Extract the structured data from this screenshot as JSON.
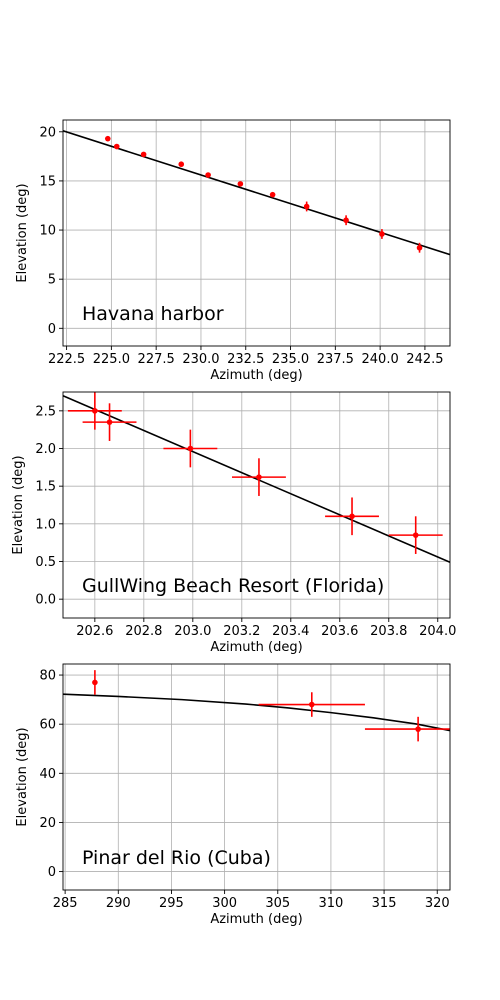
{
  "chart_data": [
    {
      "type": "scatter",
      "annotation": "Havana harbor",
      "xlabel": "Azimuth (deg)",
      "ylabel": "Elevation (deg)",
      "xlim": [
        222.3,
        243.9
      ],
      "ylim": [
        -1.8,
        21.2
      ],
      "xticks": [
        222.5,
        225.0,
        227.5,
        230.0,
        232.5,
        235.0,
        237.5,
        240.0,
        242.5
      ],
      "xtick_labels": [
        "222.5",
        "225.0",
        "227.5",
        "230.0",
        "232.5",
        "235.0",
        "237.5",
        "240.0",
        "242.5"
      ],
      "yticks": [
        0,
        5,
        10,
        15,
        20
      ],
      "ytick_labels": [
        "0",
        "5",
        "10",
        "15",
        "20"
      ],
      "grid": true,
      "colors": {
        "points": "#ff0000",
        "line": "#000000",
        "grid": "#b0b0b0"
      },
      "points": [
        {
          "x": 224.8,
          "y": 19.3,
          "xerr": 0.1,
          "yerr": 0.2
        },
        {
          "x": 225.3,
          "y": 18.5,
          "xerr": 0.1,
          "yerr": 0.2
        },
        {
          "x": 226.8,
          "y": 17.7,
          "xerr": 0.1,
          "yerr": 0.2
        },
        {
          "x": 228.9,
          "y": 16.7,
          "xerr": 0.1,
          "yerr": 0.2
        },
        {
          "x": 230.4,
          "y": 15.6,
          "xerr": 0.1,
          "yerr": 0.2
        },
        {
          "x": 232.2,
          "y": 14.7,
          "xerr": 0.1,
          "yerr": 0.2
        },
        {
          "x": 234.0,
          "y": 13.6,
          "xerr": 0.1,
          "yerr": 0.2
        },
        {
          "x": 235.9,
          "y": 12.4,
          "xerr": 0.1,
          "yerr": 0.5
        },
        {
          "x": 238.1,
          "y": 11.0,
          "xerr": 0.1,
          "yerr": 0.5
        },
        {
          "x": 240.1,
          "y": 9.6,
          "xerr": 0.1,
          "yerr": 0.5
        },
        {
          "x": 242.2,
          "y": 8.2,
          "xerr": 0.1,
          "yerr": 0.5
        }
      ],
      "line": {
        "x": [
          222.3,
          243.9
        ],
        "y": [
          20.1,
          7.5
        ]
      }
    },
    {
      "type": "scatter",
      "annotation": "GullWing Beach Resort (Florida)",
      "xlabel": "Azimuth (deg)",
      "ylabel": "Elevation (deg)",
      "xlim": [
        202.47,
        204.05
      ],
      "ylim": [
        -0.25,
        2.75
      ],
      "xticks": [
        202.6,
        202.8,
        203.0,
        203.2,
        203.4,
        203.6,
        203.8,
        204.0
      ],
      "xtick_labels": [
        "202.6",
        "202.8",
        "203.0",
        "203.2",
        "203.4",
        "203.6",
        "203.8",
        "204.0"
      ],
      "yticks": [
        0.0,
        0.5,
        1.0,
        1.5,
        2.0,
        2.5
      ],
      "ytick_labels": [
        "0.0",
        "0.5",
        "1.0",
        "1.5",
        "2.0",
        "2.5"
      ],
      "grid": true,
      "colors": {
        "points": "#ff0000",
        "line": "#000000",
        "grid": "#b0b0b0"
      },
      "points": [
        {
          "x": 202.6,
          "y": 2.5,
          "xerr": 0.11,
          "yerr": 0.25
        },
        {
          "x": 202.66,
          "y": 2.35,
          "xerr": 0.11,
          "yerr": 0.25
        },
        {
          "x": 202.99,
          "y": 2.0,
          "xerr": 0.11,
          "yerr": 0.25
        },
        {
          "x": 203.27,
          "y": 1.62,
          "xerr": 0.11,
          "yerr": 0.25
        },
        {
          "x": 203.65,
          "y": 1.1,
          "xerr": 0.11,
          "yerr": 0.25
        },
        {
          "x": 203.91,
          "y": 0.85,
          "xerr": 0.11,
          "yerr": 0.25
        }
      ],
      "line": {
        "x": [
          202.47,
          204.05
        ],
        "y": [
          2.7,
          0.49
        ]
      }
    },
    {
      "type": "scatter",
      "annotation": "Pinar del Rio (Cuba)",
      "xlabel": "Azimuth (deg)",
      "ylabel": "Elevation (deg)",
      "xlim": [
        284.8,
        321.2
      ],
      "ylim": [
        -7.5,
        84.5
      ],
      "xticks": [
        285,
        290,
        295,
        300,
        305,
        310,
        315,
        320
      ],
      "xtick_labels": [
        "285",
        "290",
        "295",
        "300",
        "305",
        "310",
        "315",
        "320"
      ],
      "yticks": [
        0,
        20,
        40,
        60,
        80
      ],
      "ytick_labels": [
        "0",
        "20",
        "40",
        "60",
        "80"
      ],
      "grid": true,
      "colors": {
        "points": "#ff0000",
        "line": "#000000",
        "grid": "#b0b0b0"
      },
      "points": [
        {
          "x": 287.8,
          "y": 77.0,
          "xerr": 0.0,
          "yerr": 5.0
        },
        {
          "x": 308.2,
          "y": 68.0,
          "xerr": 5.0,
          "yerr": 5.0
        },
        {
          "x": 318.2,
          "y": 58.0,
          "xerr": 5.0,
          "yerr": 5.0
        }
      ],
      "line": {
        "x": [
          284.8,
          290,
          296,
          302,
          306,
          310,
          314,
          318,
          321.2
        ],
        "y": [
          72.2,
          71.3,
          70.0,
          68.2,
          66.6,
          64.7,
          62.6,
          60.1,
          57.4
        ]
      }
    }
  ]
}
